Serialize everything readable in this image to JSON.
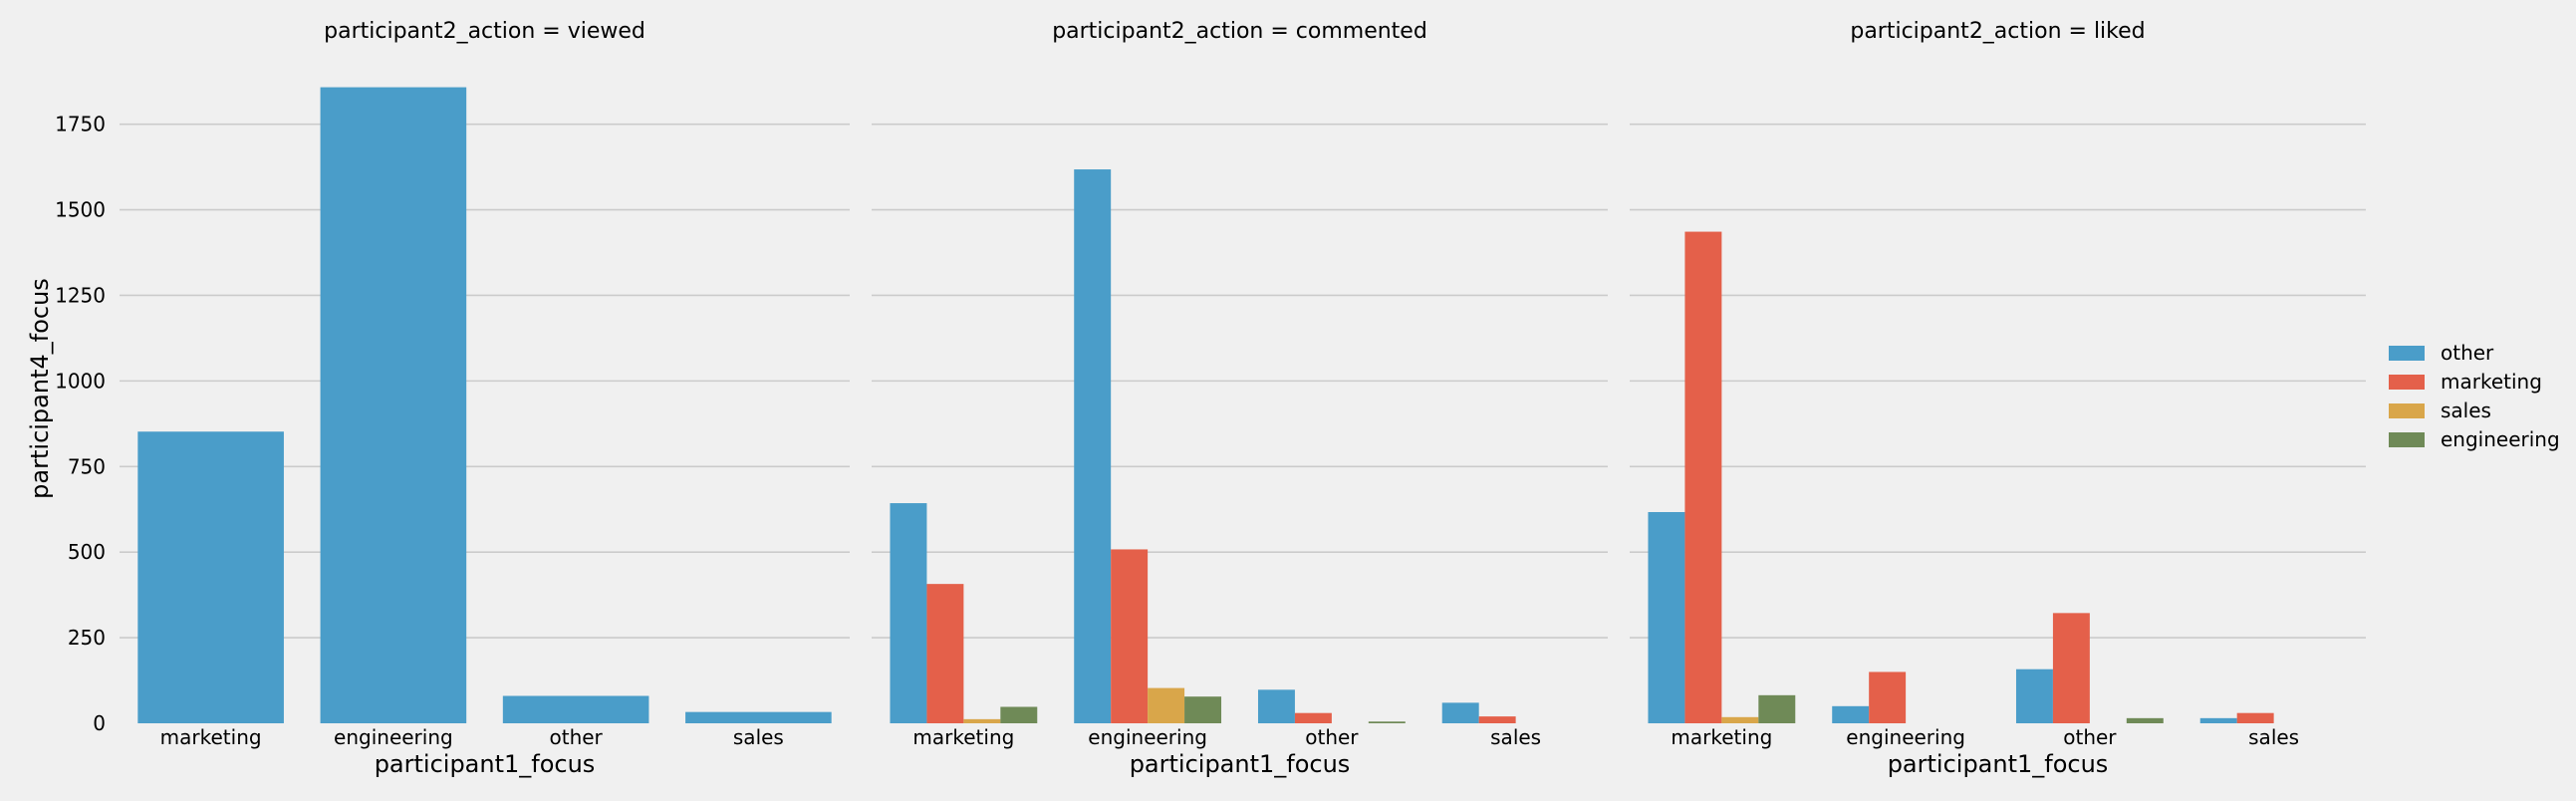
{
  "chart_data": {
    "type": "bar",
    "ylabel": "participant4_focus",
    "ylim": [
      0,
      1880
    ],
    "yticks": [
      0,
      250,
      500,
      750,
      1000,
      1250,
      1500,
      1750
    ],
    "grid": true,
    "legend_position": "right",
    "series_names": [
      "other",
      "marketing",
      "sales",
      "engineering"
    ],
    "series_colors": [
      "#4a9dc9",
      "#e4604a",
      "#d9a64a",
      "#6f8a57"
    ],
    "panels": [
      {
        "title": "participant2_action = viewed",
        "xlabel": "participant1_focus",
        "categories": [
          "marketing",
          "engineering",
          "other",
          "sales"
        ],
        "series": [
          {
            "name": "other",
            "values": [
              852,
              1858,
              80,
              33
            ]
          }
        ]
      },
      {
        "title": "participant2_action = commented",
        "xlabel": "participant1_focus",
        "categories": [
          "marketing",
          "engineering",
          "other",
          "sales"
        ],
        "series": [
          {
            "name": "other",
            "values": [
              643,
              1618,
              98,
              60
            ]
          },
          {
            "name": "marketing",
            "values": [
              407,
              508,
              30,
              20
            ]
          },
          {
            "name": "sales",
            "values": [
              12,
              103,
              0,
              0
            ]
          },
          {
            "name": "engineering",
            "values": [
              48,
              78,
              5,
              0
            ]
          }
        ]
      },
      {
        "title": "participant2_action = liked",
        "xlabel": "participant1_focus",
        "categories": [
          "marketing",
          "engineering",
          "other",
          "sales"
        ],
        "series": [
          {
            "name": "other",
            "values": [
              617,
              50,
              158,
              15
            ]
          },
          {
            "name": "marketing",
            "values": [
              1436,
              150,
              322,
              30
            ]
          },
          {
            "name": "sales",
            "values": [
              18,
              0,
              0,
              0
            ]
          },
          {
            "name": "engineering",
            "values": [
              82,
              0,
              15,
              0
            ]
          }
        ]
      }
    ]
  }
}
